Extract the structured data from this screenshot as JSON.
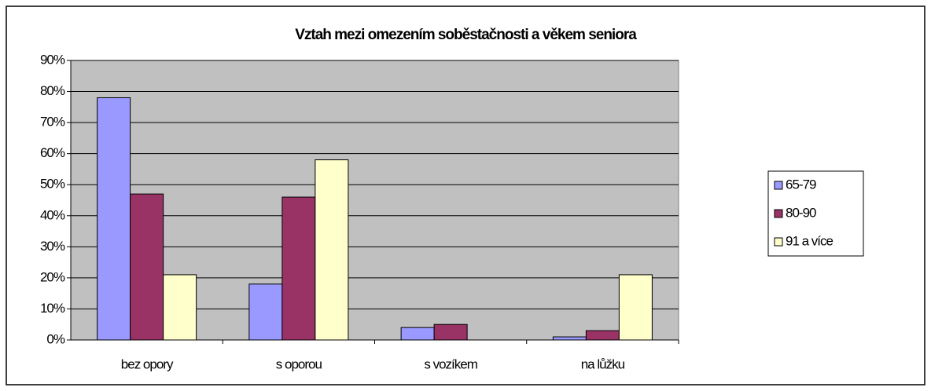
{
  "chart_data": {
    "type": "bar",
    "title": "Vztah mezi omezením soběstačnosti a věkem seniora",
    "categories": [
      "bez opory",
      "s oporou",
      "s vozíkem",
      "na lůžku"
    ],
    "series": [
      {
        "name": "65-79",
        "color": "#9999ff",
        "values": [
          78,
          18,
          4,
          1
        ]
      },
      {
        "name": "80-90",
        "color": "#993366",
        "values": [
          47,
          46,
          5,
          3
        ]
      },
      {
        "name": "91 a více",
        "color": "#ffffcc",
        "values": [
          21,
          58,
          0,
          21
        ]
      }
    ],
    "ylim": [
      0,
      90
    ],
    "yticks": [
      {
        "value": 0,
        "label": "0%"
      },
      {
        "value": 10,
        "label": "10%"
      },
      {
        "value": 20,
        "label": "20%"
      },
      {
        "value": 30,
        "label": "30%"
      },
      {
        "value": 40,
        "label": "40%"
      },
      {
        "value": 50,
        "label": "50%"
      },
      {
        "value": 60,
        "label": "60%"
      },
      {
        "value": 70,
        "label": "70%"
      },
      {
        "value": 80,
        "label": "80%"
      },
      {
        "value": 90,
        "label": "90%"
      }
    ],
    "grid": true,
    "legend": "right"
  }
}
